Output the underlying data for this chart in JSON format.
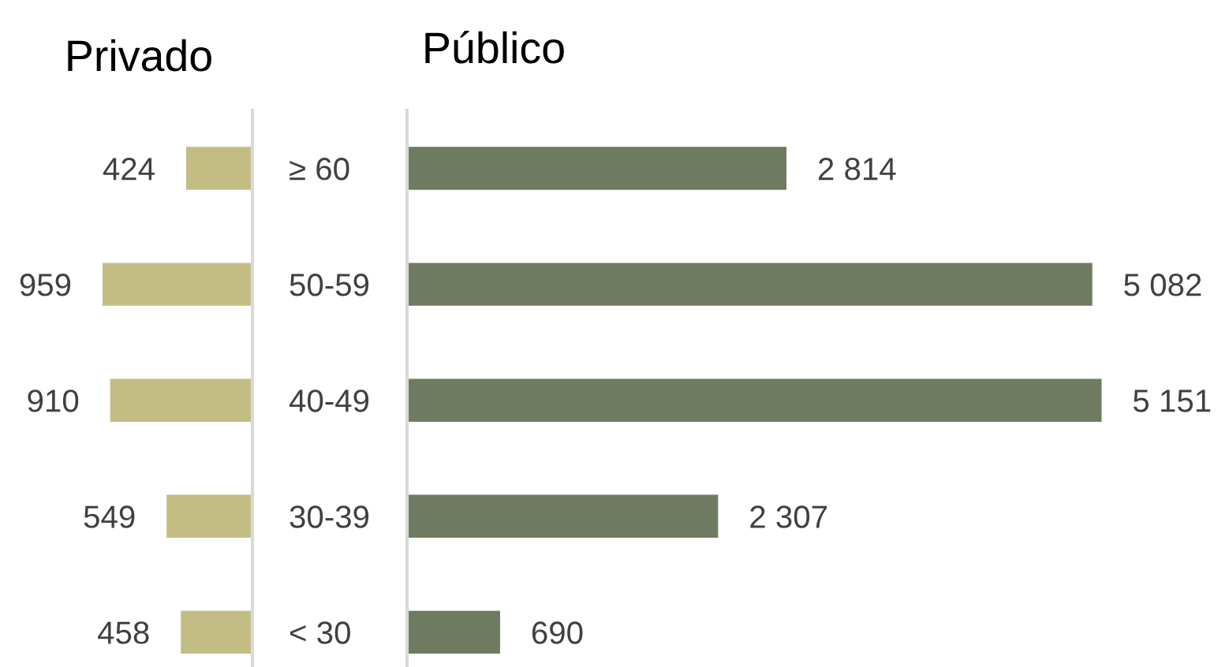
{
  "chart_data": [
    {
      "type": "bar",
      "orientation": "horizontal",
      "title": "Privado",
      "categories": [
        "≥ 60",
        "50-59",
        "40-49",
        "30-39",
        "< 30"
      ],
      "values": [
        424,
        959,
        910,
        549,
        458
      ],
      "color": "#c4bd83",
      "data_labels": true,
      "tick_labels": false
    },
    {
      "type": "bar",
      "orientation": "horizontal",
      "title": "Público",
      "categories": [
        "≥ 60",
        "50-59",
        "40-49",
        "30-39",
        "< 30"
      ],
      "values": [
        2814,
        5082,
        5151,
        2307,
        690
      ],
      "color": "#6f7b61",
      "value_labels": [
        "2 814",
        "5 082",
        "5 151",
        "2 307",
        "690"
      ],
      "tick_labels": "y"
    }
  ]
}
